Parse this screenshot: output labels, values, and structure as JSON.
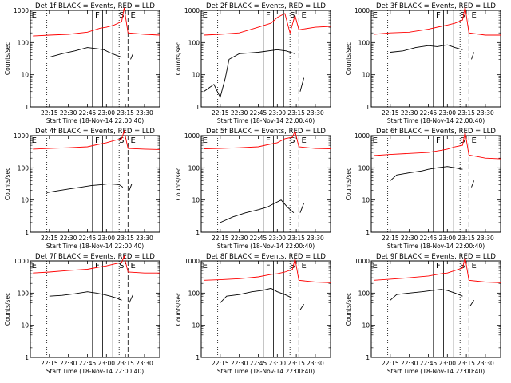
{
  "figure": {
    "xlabel": "Start Time (18-Nov-14 22:00:40)",
    "ylabel": "Counts/sec"
  },
  "chart_data": [
    {
      "type": "line",
      "log_y": true,
      "ylim": [
        1,
        1000
      ],
      "title": "Det 1f  BLACK = Events, RED = LLD",
      "xlabel": "Start Time (18-Nov-14 22:00:40)",
      "ylabel": "Counts/sec",
      "x_tick_labels": [
        "22:15",
        "22:30",
        "22:45",
        "23:00",
        "23:15",
        "23:30"
      ],
      "y_tick_labels": [
        "1",
        "10",
        "100",
        "1000"
      ],
      "markers": [
        "E",
        "F",
        "S",
        "E"
      ],
      "series": [
        {
          "color": "#000000",
          "x": [
            "22:15",
            "22:25",
            "22:35",
            "22:45",
            "22:52",
            "22:58",
            "23:02",
            "23:08",
            "23:12"
          ],
          "values": [
            35,
            45,
            55,
            70,
            65,
            60,
            50,
            40,
            35
          ]
        },
        {
          "color": "#000000",
          "x": [
            "23:19",
            "23:21"
          ],
          "values": [
            30,
            45
          ]
        },
        {
          "color": "#ff0000",
          "x": [
            "22:02",
            "22:15",
            "22:30",
            "22:45",
            "22:55",
            "23:00",
            "23:06",
            "23:12",
            "23:14",
            "23:17",
            "23:30",
            "23:42"
          ],
          "values": [
            160,
            170,
            180,
            210,
            280,
            300,
            350,
            450,
            1200,
            200,
            180,
            170
          ]
        }
      ]
    },
    {
      "type": "line",
      "log_y": true,
      "ylim": [
        1,
        1000
      ],
      "title": "Det 2f  BLACK = Events, RED = LLD",
      "xlabel": "Start Time (18-Nov-14 22:00:40)",
      "ylabel": "Counts/sec",
      "x_tick_labels": [
        "22:15",
        "22:30",
        "22:45",
        "23:00",
        "23:15",
        "23:30"
      ],
      "y_tick_labels": [
        "1",
        "10",
        "100",
        "1000"
      ],
      "markers": [
        "E",
        "F",
        "S",
        "E"
      ],
      "series": [
        {
          "color": "#000000",
          "x": [
            "22:02",
            "22:10",
            "22:15",
            "22:19",
            "22:22",
            "22:30",
            "22:45",
            "23:00",
            "23:07",
            "23:14"
          ],
          "values": [
            3,
            5,
            2,
            8,
            30,
            45,
            50,
            60,
            55,
            45
          ]
        },
        {
          "color": "#000000",
          "x": [
            "23:18",
            "23:21"
          ],
          "values": [
            3,
            8
          ]
        },
        {
          "color": "#ff0000",
          "x": [
            "22:02",
            "22:15",
            "22:30",
            "22:45",
            "22:55",
            "23:00",
            "23:06",
            "23:10",
            "23:14",
            "23:17",
            "23:30",
            "23:42"
          ],
          "values": [
            170,
            180,
            200,
            300,
            400,
            600,
            800,
            200,
            700,
            250,
            300,
            320
          ]
        }
      ]
    },
    {
      "type": "line",
      "log_y": true,
      "ylim": [
        1,
        1000
      ],
      "title": "Det 3f  BLACK = Events, RED = LLD",
      "xlabel": "Start Time (18-Nov-14 22:00:40)",
      "ylabel": "Counts/sec",
      "x_tick_labels": [
        "22:15",
        "22:30",
        "22:45",
        "23:00",
        "23:15",
        "23:30"
      ],
      "y_tick_labels": [
        "1",
        "10",
        "100",
        "1000"
      ],
      "markers": [
        "E",
        "F",
        "S",
        "E"
      ],
      "series": [
        {
          "color": "#000000",
          "x": [
            "22:15",
            "22:25",
            "22:35",
            "22:45",
            "22:52",
            "23:00",
            "23:06",
            "23:12"
          ],
          "values": [
            50,
            55,
            70,
            80,
            75,
            85,
            70,
            60
          ]
        },
        {
          "color": "#000000",
          "x": [
            "23:19",
            "23:21"
          ],
          "values": [
            30,
            50
          ]
        },
        {
          "color": "#ff0000",
          "x": [
            "22:02",
            "22:15",
            "22:30",
            "22:45",
            "22:55",
            "23:00",
            "23:06",
            "23:12",
            "23:14",
            "23:17",
            "23:30",
            "23:42"
          ],
          "values": [
            180,
            200,
            210,
            260,
            320,
            350,
            400,
            500,
            1300,
            200,
            170,
            170
          ]
        }
      ]
    },
    {
      "type": "line",
      "log_y": true,
      "ylim": [
        1,
        1000
      ],
      "title": "Det 4f  BLACK = Events, RED = LLD",
      "xlabel": "Start Time (18-Nov-14 22:00:40)",
      "ylabel": "Counts/sec",
      "x_tick_labels": [
        "22:15",
        "22:30",
        "22:45",
        "23:00",
        "23:15",
        "23:30"
      ],
      "y_tick_labels": [
        "1",
        "10",
        "100",
        "1000"
      ],
      "markers": [
        "E",
        "F",
        "S",
        "E"
      ],
      "series": [
        {
          "color": "#000000",
          "x": [
            "22:13",
            "22:20",
            "22:30",
            "22:40",
            "22:48",
            "22:56",
            "23:02",
            "23:10",
            "23:13"
          ],
          "values": [
            17,
            19,
            22,
            25,
            28,
            30,
            32,
            30,
            25
          ]
        },
        {
          "color": "#000000",
          "x": [
            "23:18",
            "23:20"
          ],
          "values": [
            20,
            32
          ]
        },
        {
          "color": "#ff0000",
          "x": [
            "22:02",
            "22:15",
            "22:30",
            "22:45",
            "22:55",
            "23:00",
            "23:06",
            "23:12",
            "23:14",
            "23:17",
            "23:30",
            "23:42"
          ],
          "values": [
            380,
            400,
            420,
            450,
            550,
            600,
            700,
            800,
            1400,
            400,
            380,
            370
          ]
        }
      ]
    },
    {
      "type": "line",
      "log_y": true,
      "ylim": [
        1,
        1000
      ],
      "title": "Det 5f  BLACK = Events, RED = LLD",
      "xlabel": "Start Time (18-Nov-14 22:00:40)",
      "ylabel": "Counts/sec",
      "x_tick_labels": [
        "22:15",
        "22:30",
        "22:45",
        "23:00",
        "23:15",
        "23:30"
      ],
      "y_tick_labels": [
        "1",
        "10",
        "100",
        "1000"
      ],
      "markers": [
        "E",
        "F",
        "S",
        "E"
      ],
      "series": [
        {
          "color": "#000000",
          "x": [
            "22:15",
            "22:25",
            "22:35",
            "22:45",
            "22:52",
            "22:58",
            "23:03",
            "23:08",
            "23:13"
          ],
          "values": [
            2,
            3,
            4,
            5,
            6,
            8,
            10,
            6,
            4
          ]
        },
        {
          "color": "#000000",
          "x": [
            "23:18",
            "23:21"
          ],
          "values": [
            4,
            8
          ]
        },
        {
          "color": "#ff0000",
          "x": [
            "22:02",
            "22:15",
            "22:30",
            "22:45",
            "22:55",
            "23:00",
            "23:06",
            "23:12",
            "23:14",
            "23:17",
            "23:30",
            "23:42"
          ],
          "values": [
            390,
            400,
            420,
            450,
            550,
            600,
            800,
            900,
            1400,
            450,
            400,
            390
          ]
        }
      ]
    },
    {
      "type": "line",
      "log_y": true,
      "ylim": [
        1,
        1000
      ],
      "title": "Det 6f  BLACK = Events, RED = LLD",
      "xlabel": "Start Time (18-Nov-14 22:00:40)",
      "ylabel": "Counts/sec",
      "x_tick_labels": [
        "22:15",
        "22:30",
        "22:45",
        "23:00",
        "23:15",
        "23:30"
      ],
      "y_tick_labels": [
        "1",
        "10",
        "100",
        "1000"
      ],
      "markers": [
        "E",
        "F",
        "S",
        "E"
      ],
      "series": [
        {
          "color": "#000000",
          "x": [
            "22:15",
            "22:20",
            "22:30",
            "22:40",
            "22:45",
            "22:52",
            "23:00",
            "23:06",
            "23:12"
          ],
          "values": [
            40,
            60,
            70,
            80,
            90,
            100,
            110,
            100,
            90
          ]
        },
        {
          "color": "#000000",
          "x": [
            "23:19",
            "23:21"
          ],
          "values": [
            25,
            40
          ]
        },
        {
          "color": "#ff0000",
          "x": [
            "22:02",
            "22:15",
            "22:30",
            "22:45",
            "22:55",
            "23:00",
            "23:06",
            "23:12",
            "23:14",
            "23:17",
            "23:30",
            "23:42"
          ],
          "values": [
            240,
            260,
            280,
            300,
            350,
            380,
            450,
            500,
            1300,
            250,
            200,
            190
          ]
        }
      ]
    },
    {
      "type": "line",
      "log_y": true,
      "ylim": [
        1,
        1000
      ],
      "title": "Det 7f  BLACK = Events, RED = LLD",
      "xlabel": "Start Time (18-Nov-14 22:00:40)",
      "ylabel": "Counts/sec",
      "x_tick_labels": [
        "22:15",
        "22:30",
        "22:45",
        "23:00",
        "23:15",
        "23:30"
      ],
      "y_tick_labels": [
        "1",
        "10",
        "100",
        "1000"
      ],
      "markers": [
        "E",
        "F",
        "S",
        "E"
      ],
      "series": [
        {
          "color": "#000000",
          "x": [
            "22:15",
            "22:25",
            "22:35",
            "22:45",
            "22:52",
            "22:58",
            "23:03",
            "23:08",
            "23:12"
          ],
          "values": [
            80,
            85,
            95,
            110,
            100,
            90,
            80,
            70,
            60
          ]
        },
        {
          "color": "#000000",
          "x": [
            "23:18",
            "23:21"
          ],
          "values": [
            50,
            90
          ]
        },
        {
          "color": "#ff0000",
          "x": [
            "22:02",
            "22:15",
            "22:30",
            "22:45",
            "22:55",
            "23:00",
            "23:06",
            "23:12",
            "23:14",
            "23:17",
            "23:30",
            "23:42"
          ],
          "values": [
            420,
            450,
            500,
            550,
            650,
            700,
            800,
            900,
            1400,
            450,
            420,
            420
          ]
        }
      ]
    },
    {
      "type": "line",
      "log_y": true,
      "ylim": [
        1,
        1000
      ],
      "title": "Det 8f  BLACK = Events, RED = LLD",
      "xlabel": "Start Time (18-Nov-14 22:00:40)",
      "ylabel": "Counts/sec",
      "x_tick_labels": [
        "22:15",
        "22:30",
        "22:45",
        "23:00",
        "23:15",
        "23:30"
      ],
      "y_tick_labels": [
        "1",
        "10",
        "100",
        "1000"
      ],
      "markers": [
        "E",
        "F",
        "S",
        "E"
      ],
      "series": [
        {
          "color": "#000000",
          "x": [
            "22:15",
            "22:20",
            "22:30",
            "22:40",
            "22:48",
            "22:55",
            "23:00",
            "23:06",
            "23:12"
          ],
          "values": [
            50,
            80,
            90,
            110,
            120,
            140,
            110,
            90,
            70
          ]
        },
        {
          "color": "#000000",
          "x": [
            "23:18",
            "23:21"
          ],
          "values": [
            30,
            45
          ]
        },
        {
          "color": "#ff0000",
          "x": [
            "22:02",
            "22:15",
            "22:30",
            "22:45",
            "22:55",
            "23:00",
            "23:06",
            "23:12",
            "23:14",
            "23:17",
            "23:30",
            "23:42"
          ],
          "values": [
            250,
            260,
            280,
            320,
            380,
            400,
            450,
            550,
            1200,
            250,
            220,
            210
          ]
        }
      ]
    },
    {
      "type": "line",
      "log_y": true,
      "ylim": [
        1,
        1000
      ],
      "title": "Det 9f  BLACK = Events, RED = LLD",
      "xlabel": "Start Time (18-Nov-14 22:00:40)",
      "ylabel": "Counts/sec",
      "x_tick_labels": [
        "22:15",
        "22:30",
        "22:45",
        "23:00",
        "23:15",
        "23:30"
      ],
      "y_tick_labels": [
        "1",
        "10",
        "100",
        "1000"
      ],
      "markers": [
        "E",
        "F",
        "S",
        "E"
      ],
      "series": [
        {
          "color": "#000000",
          "x": [
            "22:15",
            "22:20",
            "22:30",
            "22:40",
            "22:48",
            "22:55",
            "23:00",
            "23:06",
            "23:12"
          ],
          "values": [
            60,
            90,
            100,
            110,
            120,
            130,
            120,
            100,
            80
          ]
        },
        {
          "color": "#000000",
          "x": [
            "23:18",
            "23:21"
          ],
          "values": [
            40,
            60
          ]
        },
        {
          "color": "#ff0000",
          "x": [
            "22:02",
            "22:15",
            "22:30",
            "22:45",
            "22:55",
            "23:00",
            "23:06",
            "23:12",
            "23:14",
            "23:17",
            "23:30",
            "23:42"
          ],
          "values": [
            250,
            270,
            300,
            340,
            400,
            420,
            500,
            600,
            1300,
            250,
            220,
            210
          ]
        }
      ]
    }
  ]
}
